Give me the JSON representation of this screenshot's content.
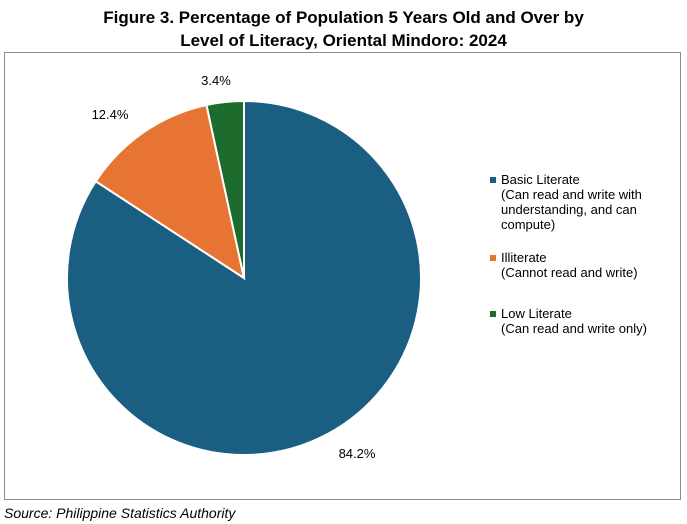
{
  "title_line1": "Figure 3. Percentage of Population 5 Years Old and Over by",
  "title_line2": "Level of Literacy, Oriental Mindoro: 2024",
  "source": "Source: Philippine Statistics Authority",
  "chart_data": {
    "type": "pie",
    "title": "Figure 3. Percentage of Population 5 Years Old and Over by Level of Literacy, Oriental Mindoro: 2024",
    "slices": [
      {
        "name": "Basic Literate",
        "description": "(Can read and write with understanding, and can compute)",
        "desc_lines": [
          "(Can read and write with",
          "understanding, and can",
          "compute)"
        ],
        "value": 84.2,
        "label": "84.2%",
        "color": "#1a5e82"
      },
      {
        "name": "Illiterate",
        "description": "(Cannot read and write)",
        "desc_lines": [
          "(Cannot read and write)"
        ],
        "value": 12.4,
        "label": "12.4%",
        "color": "#e87434"
      },
      {
        "name": "Low Literate",
        "description": "(Can read and write only)",
        "desc_lines": [
          "(Can read and write only)"
        ],
        "value": 3.4,
        "label": "3.4%",
        "color": "#1e6b2e"
      }
    ],
    "legend_position": "right",
    "start": "top, clockwise"
  }
}
